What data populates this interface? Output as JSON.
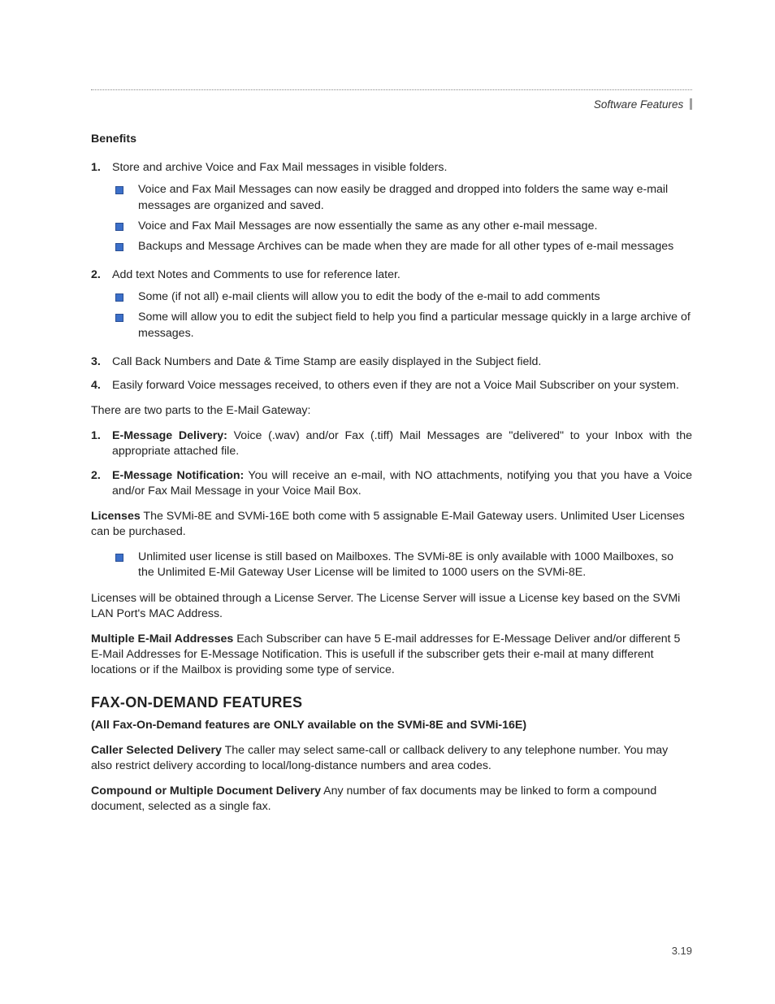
{
  "colors": {
    "text": "#222222",
    "bullet_fill": "#3b6fc9",
    "bullet_border": "#2a4e93",
    "rule": "#888888",
    "header_bar": "#a0a0a0",
    "background": "#ffffff"
  },
  "typography": {
    "body_size_pt": 11,
    "heading_size_pt": 14,
    "font_family": "Myriad Pro / Segoe UI"
  },
  "header": {
    "right_label": "Software Features"
  },
  "benefits_title": "Benefits",
  "benefits_list": {
    "items": [
      {
        "num": "1.",
        "text": "Store and archive Voice and Fax Mail messages in visible folders.",
        "bullets": [
          "Voice and Fax Mail Messages can now easily be dragged and dropped into folders the same way e-mail messages are organized and saved.",
          "Voice and Fax Mail Messages are now essentially the same as any other e-mail message.",
          "Backups and Message Archives can be made when they are made for all other types of e-mail messages"
        ]
      },
      {
        "num": "2.",
        "text": "Add text Notes and Comments to use for reference later.",
        "bullets": [
          "Some (if not all) e-mail clients will allow you to edit the body of the e-mail to add comments",
          "Some will allow you to edit the subject field to help you find a particular message quickly in a large archive of messages."
        ]
      },
      {
        "num": "3.",
        "text": "Call Back Numbers and Date & Time Stamp are easily displayed in the Subject field."
      },
      {
        "num": "4.",
        "text": "Easily forward Voice messages received, to others even if they are not a Voice Mail Subscriber on your system."
      }
    ]
  },
  "gateway_intro": "There are two parts to the E-Mail Gateway:",
  "gateway_list": {
    "items": [
      {
        "num": "1.",
        "label": "E-Message Delivery:",
        "text": " Voice (.wav) and/or Fax (.tiff) Mail Messages are \"delivered\" to your Inbox with the appropriate attached file."
      },
      {
        "num": "2.",
        "label": "E-Message Notification:",
        "text": " You will receive an e-mail, with NO attachments, notifying you that you have a Voice and/or Fax Mail Message in your Voice Mail Box."
      }
    ]
  },
  "licenses": {
    "label": "Licenses",
    "text": " The SVMi-8E and SVMi-16E both come with 5 assignable E-Mail Gateway users.  Unlimited User Licenses can be purchased.",
    "bullet": "Unlimited user license is still based on Mailboxes.  The SVMi-8E is only available with 1000 Mailboxes, so the Unlimited E-Mil Gateway User License will be limited to 1000 users on the SVMi-8E.",
    "server_text": "Licenses will be obtained through a License Server.  The License Server will issue a License key based on the SVMi LAN Port's MAC Address."
  },
  "multi_email": {
    "label": "Multiple E-Mail Addresses",
    "text": " Each Subscriber can have 5 E-mail addresses for E-Message Deliver and/or different 5 E-Mail Addresses for E-Message Notification. This is usefull if the subscriber gets their e-mail at many different locations or if the Mailbox is providing some type of service."
  },
  "fax_section": {
    "heading": "FAX-ON-DEMAND FEATURES",
    "subheading": "(All Fax-On-Demand features are ONLY available on the SVMi-8E and SVMi-16E)",
    "caller": {
      "label": "Caller Selected Delivery",
      "text": " The caller may select same-call or callback delivery to any telephone number. You may also restrict delivery according to local/long-distance numbers and area codes."
    },
    "compound": {
      "label": "Compound or Multiple Document Delivery",
      "text": " Any number of fax documents may be linked to form a compound document, selected as a single fax."
    }
  },
  "footer_page": "3.19"
}
